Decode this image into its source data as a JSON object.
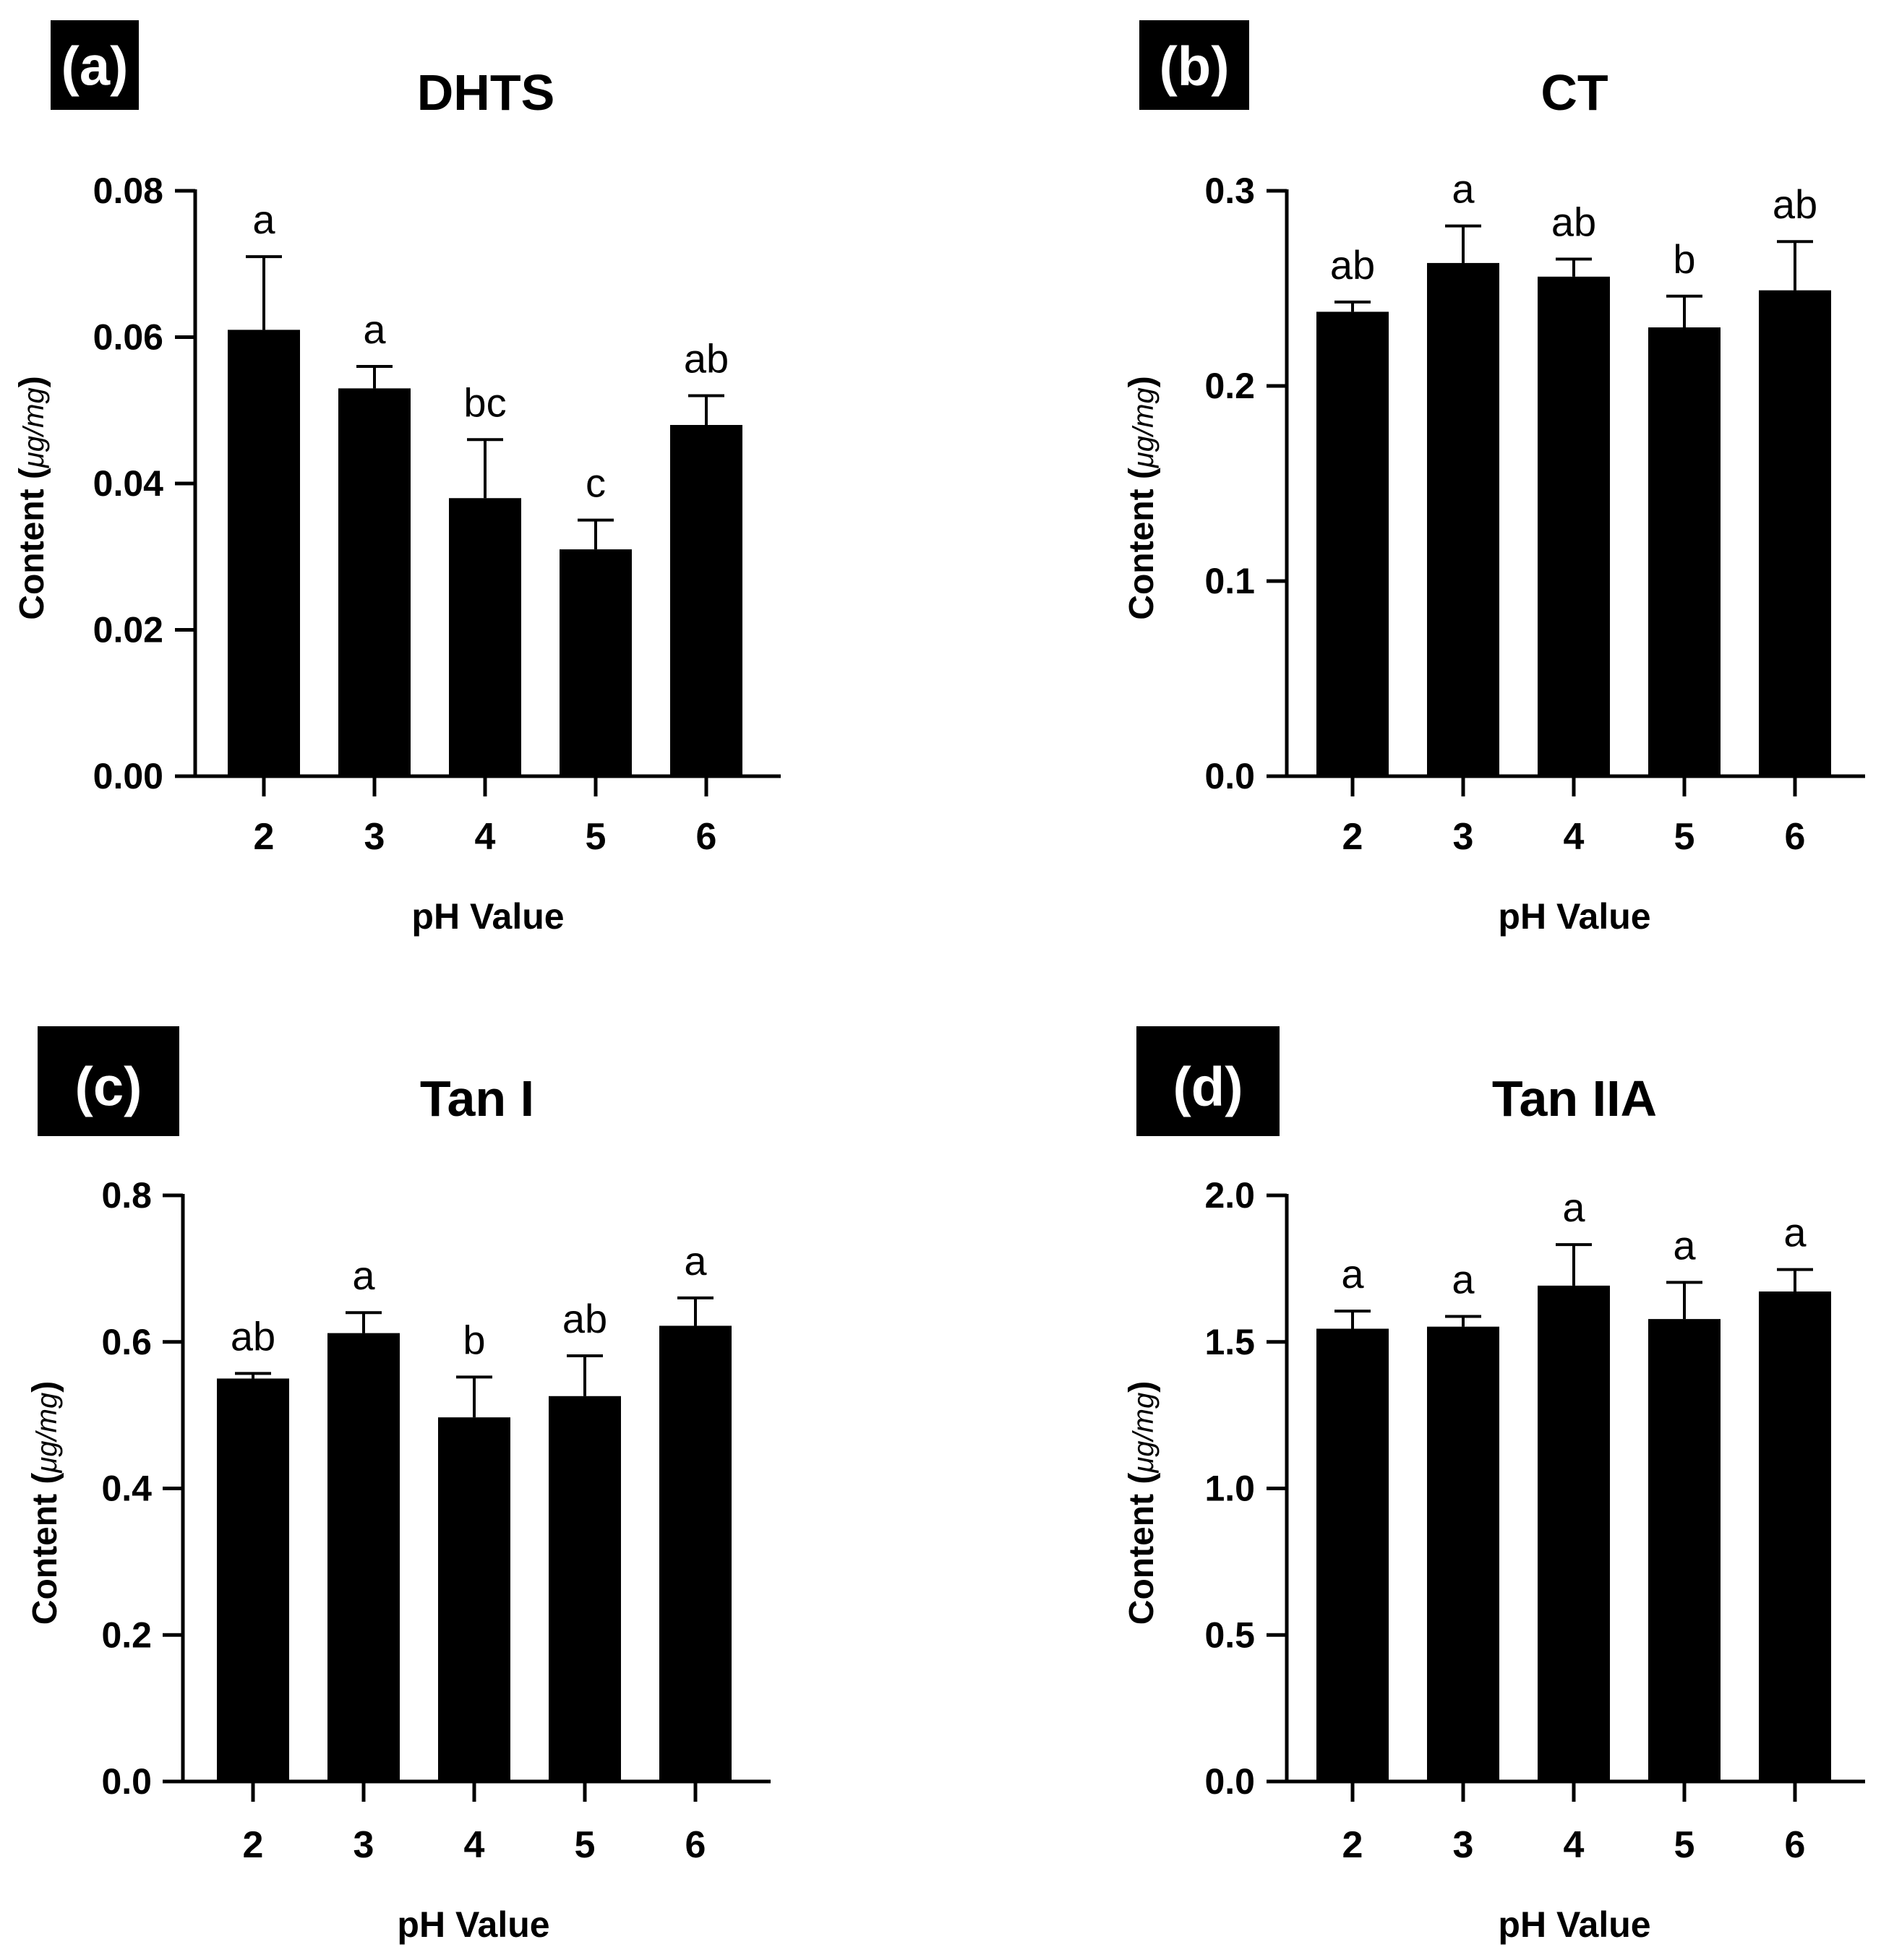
{
  "figure": {
    "bar_color": "#000000",
    "badge_color": "#000000",
    "badge_text_color": "#ffffff",
    "axis_color": "#000000"
  },
  "chart_data": [
    {
      "type": "bar",
      "panel_label": "(a)",
      "title": "DHTS",
      "xlabel": "pH Value",
      "ylabel": "Content",
      "ylabel_unit": "μg/mg",
      "categories": [
        "2",
        "3",
        "4",
        "5",
        "6"
      ],
      "values": [
        0.061,
        0.053,
        0.038,
        0.031,
        0.048
      ],
      "errors": [
        0.01,
        0.003,
        0.008,
        0.004,
        0.004
      ],
      "significance": [
        "a",
        "a",
        "bc",
        "c",
        "ab"
      ],
      "ylim": [
        0,
        0.08
      ],
      "yticks": [
        0,
        0.02,
        0.04,
        0.06,
        0.08
      ],
      "ytick_labels": [
        "0.00",
        "0.02",
        "0.04",
        "0.06",
        "0.08"
      ]
    },
    {
      "type": "bar",
      "panel_label": "(b)",
      "title": "CT",
      "xlabel": "pH Value",
      "ylabel": "Content",
      "ylabel_unit": "μg/mg",
      "categories": [
        "2",
        "3",
        "4",
        "5",
        "6"
      ],
      "values": [
        0.238,
        0.263,
        0.256,
        0.23,
        0.249
      ],
      "errors": [
        0.005,
        0.019,
        0.009,
        0.016,
        0.025
      ],
      "significance": [
        "ab",
        "a",
        "ab",
        "b",
        "ab"
      ],
      "ylim": [
        0,
        0.3
      ],
      "yticks": [
        0,
        0.1,
        0.2,
        0.3
      ],
      "ytick_labels": [
        "0.0",
        "0.1",
        "0.2",
        "0.3"
      ]
    },
    {
      "type": "bar",
      "panel_label": "(c)",
      "title": "Tan I",
      "xlabel": "pH Value",
      "ylabel": "Content",
      "ylabel_unit": "μg/mg",
      "categories": [
        "2",
        "3",
        "4",
        "5",
        "6"
      ],
      "values": [
        0.55,
        0.612,
        0.497,
        0.526,
        0.622
      ],
      "errors": [
        0.007,
        0.028,
        0.055,
        0.055,
        0.038
      ],
      "significance": [
        "ab",
        "a",
        "b",
        "ab",
        "a"
      ],
      "ylim": [
        0,
        0.8
      ],
      "yticks": [
        0,
        0.2,
        0.4,
        0.6,
        0.8
      ],
      "ytick_labels": [
        "0.0",
        "0.2",
        "0.4",
        "0.6",
        "0.8"
      ]
    },
    {
      "type": "bar",
      "panel_label": "(d)",
      "title": "Tan IIA",
      "xlabel": "pH Value",
      "ylabel": "Content",
      "ylabel_unit": "μg/mg",
      "categories": [
        "2",
        "3",
        "4",
        "5",
        "6"
      ],
      "values": [
        1.545,
        1.552,
        1.692,
        1.578,
        1.672
      ],
      "errors": [
        0.06,
        0.035,
        0.14,
        0.125,
        0.075
      ],
      "significance": [
        "a",
        "a",
        "a",
        "a",
        "a"
      ],
      "ylim": [
        0,
        2.0
      ],
      "yticks": [
        0,
        0.5,
        1.0,
        1.5,
        2.0
      ],
      "ytick_labels": [
        "0.0",
        "0.5",
        "1.0",
        "1.5",
        "2.0"
      ]
    }
  ]
}
